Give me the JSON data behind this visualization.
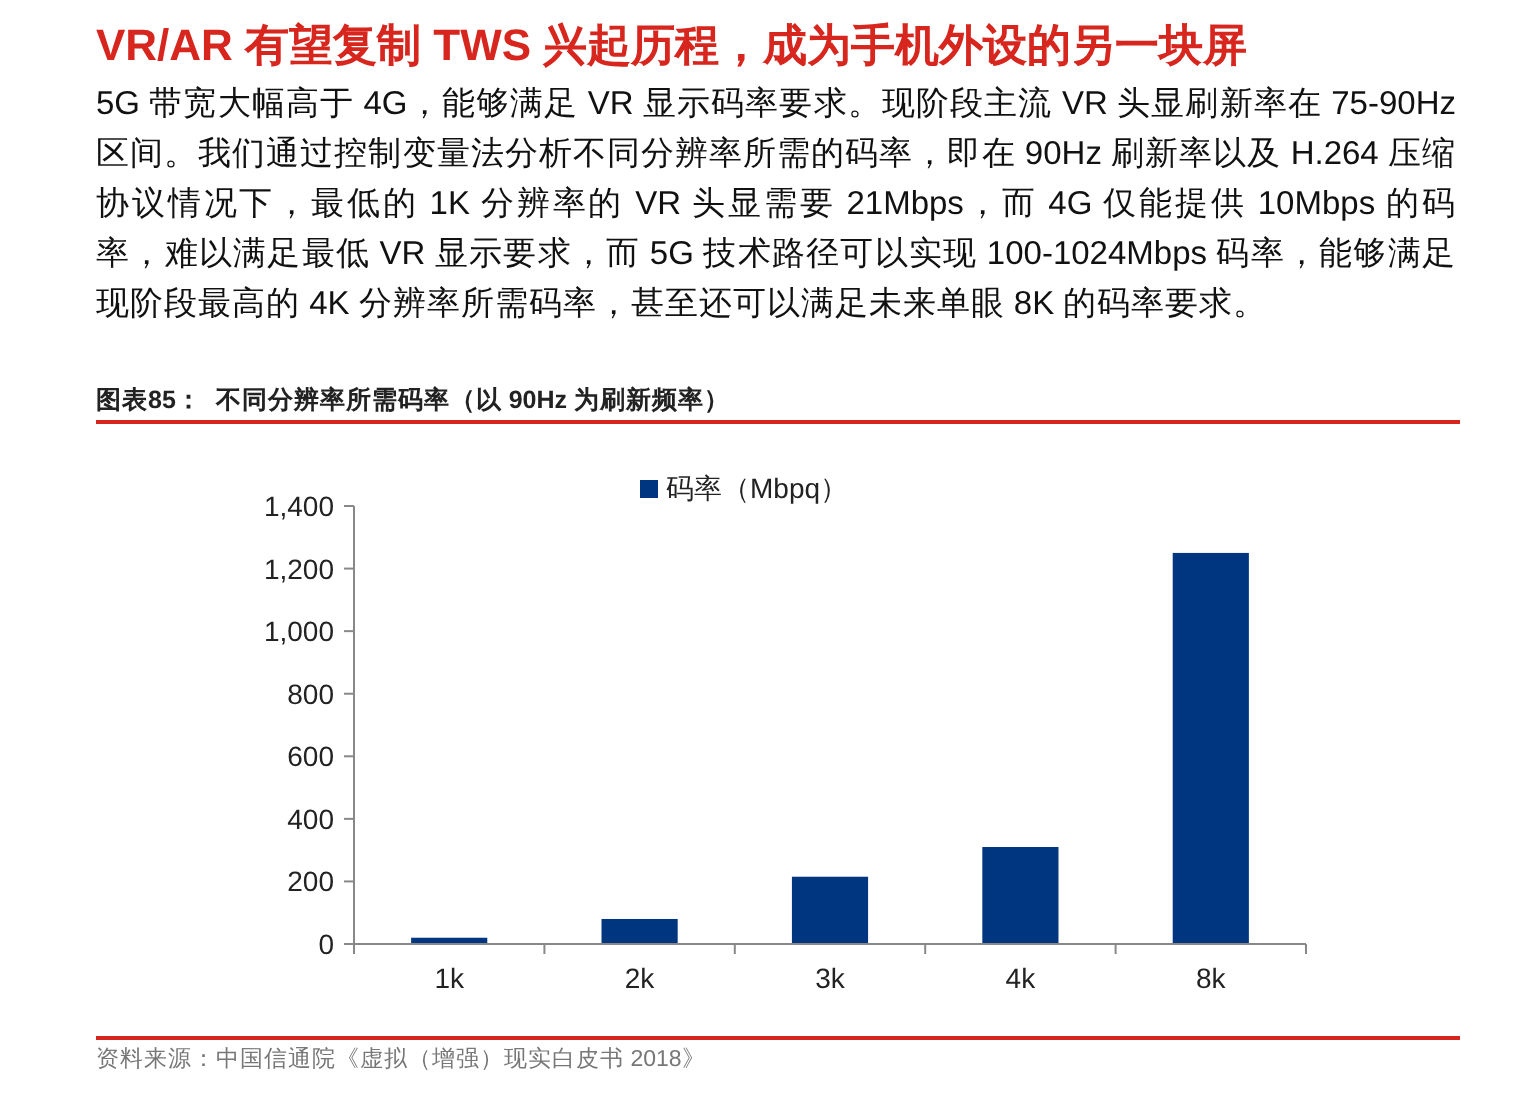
{
  "chart_data": {
    "type": "bar",
    "title": "VR/AR 有望复制 TWS 兴起历程，成为手机外设的另一块屏",
    "subtitle": "5G 带宽大幅高于 4G，能够满足 VR 显示码率要求。现阶段主流 VR 头显刷新率在 75-90Hz 区间。我们通过控制变量法分析不同分辨率所需的码率，即在 90Hz 刷新率以及 H.264 压缩协议情况下，最低的 1K 分辨率的 VR 头显需要 21Mbps，而 4G 仅能提供 10Mbps 的码率，难以满足最低 VR 显示要求，而 5G 技术路径可以实现 100-1024Mbps 码率，能够满足现阶段最高的 4K 分辨率所需码率，甚至还可以满足未来单眼 8K 的码率要求。",
    "annotations": [
      "图表85：  不同分辨率所需码率（以 90Hz 为刷新频率）",
      "资料来源：中国信通院《虚拟（增强）现实白皮书 2018》"
    ],
    "categories": [
      "1k",
      "2k",
      "3k",
      "4k",
      "8k"
    ],
    "series": [
      {
        "name": "码率（Mbpq）",
        "color": "#003580",
        "values": [
          20,
          80,
          215,
          310,
          1250
        ]
      }
    ],
    "ylim": [
      0,
      1400
    ],
    "yticks": [
      {
        "value": 0,
        "label": "0"
      },
      {
        "value": 200,
        "label": "200"
      },
      {
        "value": 400,
        "label": "400"
      },
      {
        "value": 600,
        "label": "600"
      },
      {
        "value": 800,
        "label": "800"
      },
      {
        "value": 1000,
        "label": "1,000"
      },
      {
        "value": 1200,
        "label": "1,200"
      },
      {
        "value": 1400,
        "label": "1,400"
      }
    ],
    "legend": "top",
    "grid": false
  }
}
